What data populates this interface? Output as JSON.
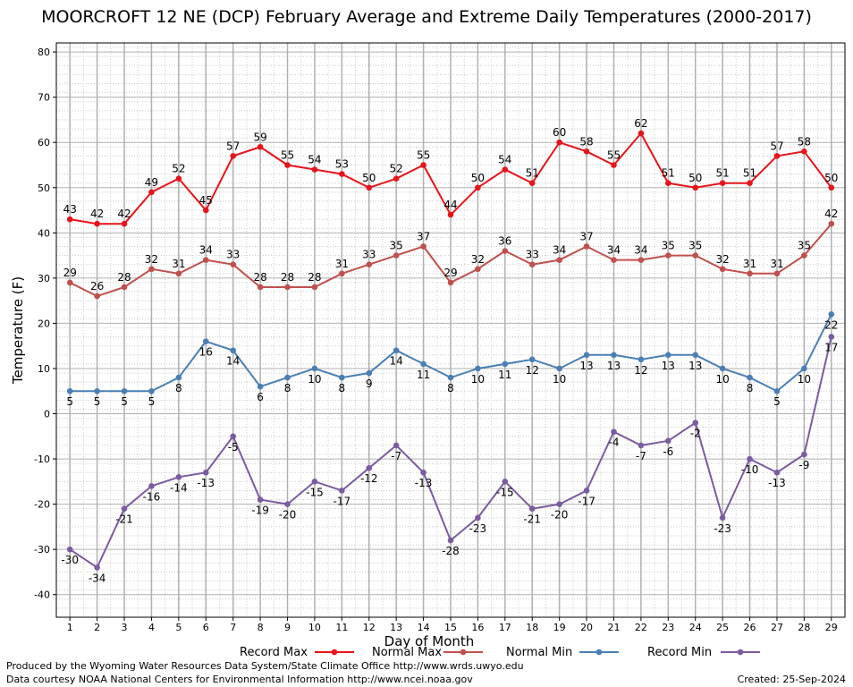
{
  "title": "MOORCROFT 12 NE (DCP) February Average and Extreme Daily Temperatures (2000-2017)",
  "footer": {
    "produced_by": "Produced by the Wyoming Water Resources Data System/State Climate Office http://www.wrds.uwyo.edu",
    "courtesy": "Data courtesy NOAA National Centers for Environmental Information http://www.ncei.noaa.gov",
    "created": "Created:  25-Sep-2024"
  },
  "chart_data": {
    "type": "line",
    "title": "MOORCROFT 12 NE (DCP) February Average and Extreme Daily Temperatures (2000-2017)",
    "xlabel": "Day of Month",
    "ylabel": "Temperature (F)",
    "x": [
      1,
      2,
      3,
      4,
      5,
      6,
      7,
      8,
      9,
      10,
      11,
      12,
      13,
      14,
      15,
      16,
      17,
      18,
      19,
      20,
      21,
      22,
      23,
      24,
      25,
      26,
      27,
      28,
      29
    ],
    "xlim": [
      1,
      29
    ],
    "ylim": [
      -45,
      82
    ],
    "yticks": [
      80,
      70,
      60,
      50,
      40,
      30,
      20,
      10,
      0,
      -10,
      -20,
      -30,
      -40
    ],
    "grid": true,
    "legend_position": "bottom",
    "series": [
      {
        "name": "Record Max",
        "color": "#e8141b",
        "values": [
          43,
          42,
          42,
          49,
          52,
          45,
          57,
          59,
          55,
          54,
          53,
          50,
          52,
          55,
          44,
          50,
          54,
          51,
          60,
          58,
          55,
          62,
          51,
          50,
          51,
          51,
          57,
          58,
          50
        ]
      },
      {
        "name": "Normal Max",
        "color": "#c0504d",
        "values": [
          29,
          26,
          28,
          32,
          31,
          34,
          33,
          28,
          28,
          28,
          31,
          33,
          35,
          37,
          29,
          32,
          36,
          33,
          34,
          37,
          34,
          34,
          35,
          35,
          32,
          31,
          31,
          35,
          42
        ]
      },
      {
        "name": "Normal Min",
        "color": "#4a7fb5",
        "values": [
          5,
          5,
          5,
          5,
          8,
          16,
          14,
          6,
          8,
          10,
          8,
          9,
          14,
          11,
          8,
          10,
          11,
          12,
          10,
          13,
          13,
          12,
          13,
          13,
          10,
          8,
          5,
          10,
          22
        ]
      },
      {
        "name": "Record Min",
        "color": "#7b5ba1",
        "values": [
          -30,
          -34,
          -21,
          -16,
          -14,
          -13,
          -5,
          -19,
          -20,
          -15,
          -17,
          -12,
          -7,
          -13,
          -28,
          -23,
          -15,
          -21,
          -20,
          -17,
          -4,
          -7,
          -6,
          -2,
          -23,
          -10,
          -13,
          -9,
          17
        ]
      }
    ]
  }
}
